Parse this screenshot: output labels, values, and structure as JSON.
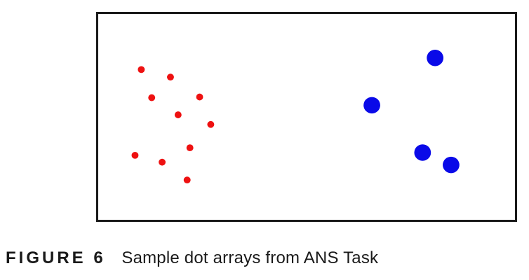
{
  "figure": {
    "label": "FIGURE 6",
    "caption": "Sample dot arrays from ANS Task"
  },
  "dot_arrays": {
    "left": {
      "count": 10,
      "color": "#ee1111"
    },
    "right": {
      "count": 4,
      "color": "#0a0ae8"
    }
  }
}
